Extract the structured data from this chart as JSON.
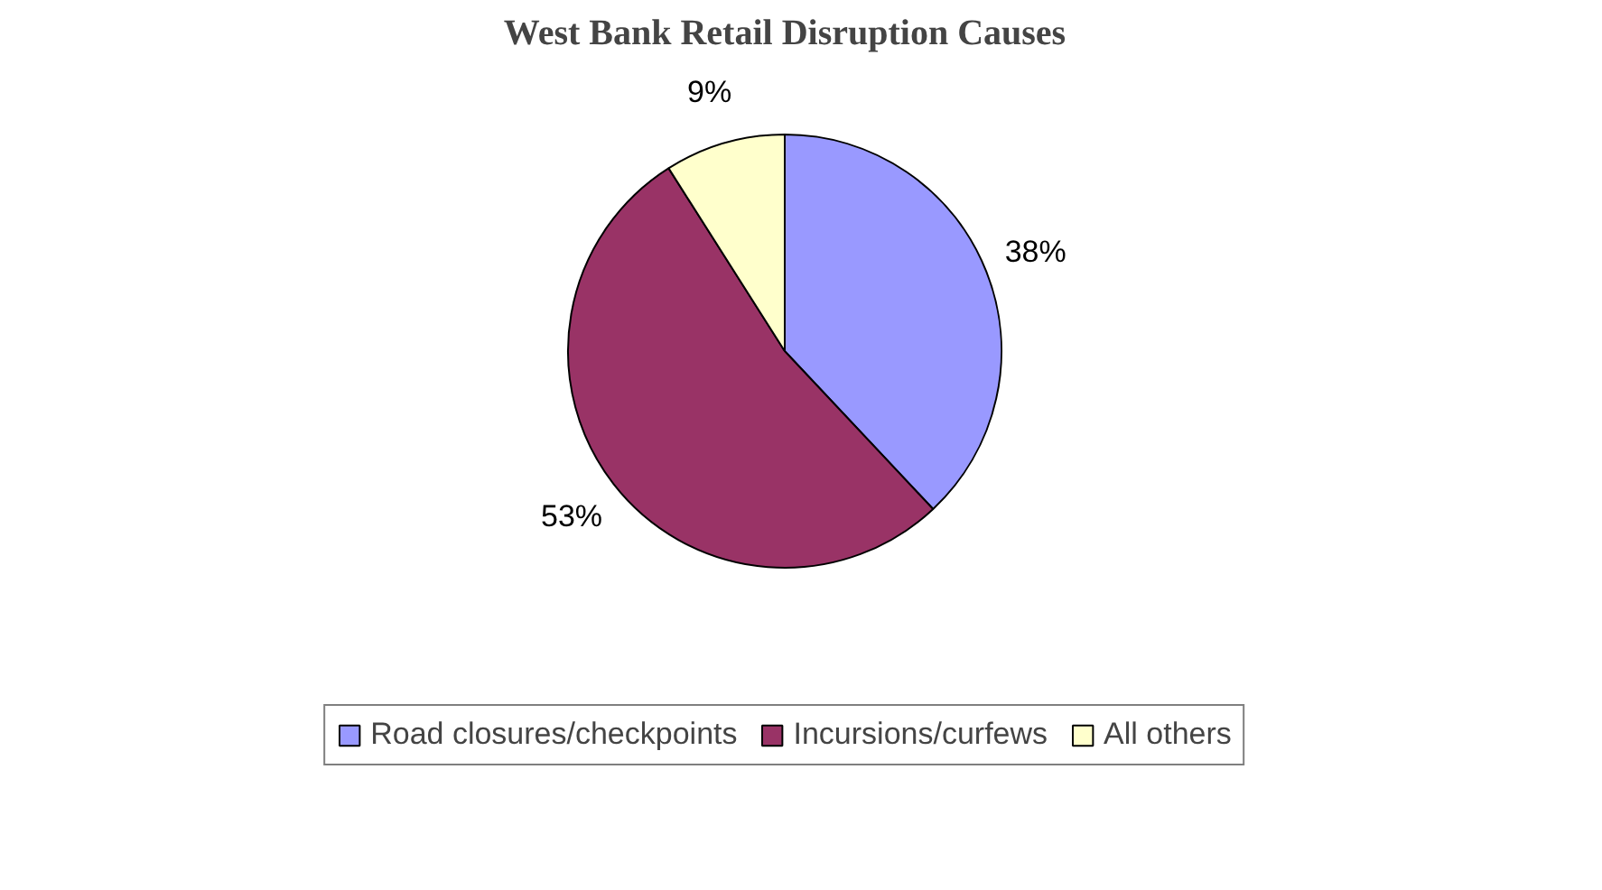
{
  "chart_data": {
    "type": "pie",
    "title": "West Bank Retail Disruption Causes",
    "categories": [
      "Road closures/checkpoints",
      "Incursions/curfews",
      "All others"
    ],
    "values": [
      38,
      53,
      9
    ],
    "colors": [
      "#9999ff",
      "#993366",
      "#ffffcc"
    ],
    "value_labels": [
      "38%",
      "53%",
      "9%"
    ],
    "legend": "bottom"
  }
}
